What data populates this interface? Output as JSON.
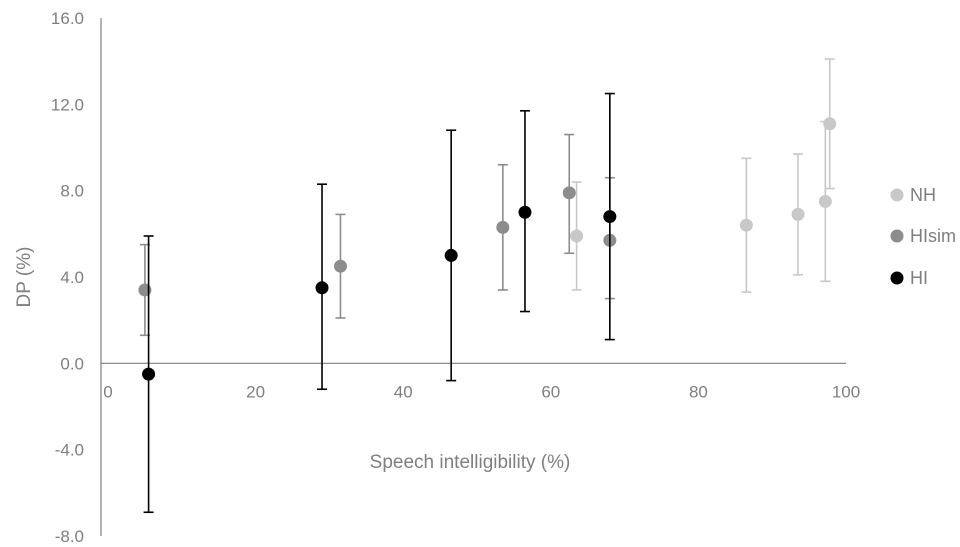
{
  "chart_data": {
    "type": "scatter",
    "title": "",
    "xlabel": "Speech intelligibility (%)",
    "ylabel": "DP (%)",
    "xlim": [
      0,
      100
    ],
    "ylim": [
      -8.0,
      16.0
    ],
    "x_ticks": [
      0,
      20,
      40,
      60,
      80,
      100
    ],
    "y_ticks": [
      -8.0,
      -4.0,
      0.0,
      4.0,
      8.0,
      12.0,
      16.0
    ],
    "x_tick_labels": [
      "0",
      "20",
      "40",
      "60",
      "80",
      "100"
    ],
    "y_tick_labels": [
      "-8.0",
      "-4.0",
      "0.0",
      "4.0",
      "8.0",
      "12.0",
      "16.0"
    ],
    "grid": false,
    "legend_position": "right",
    "error_bars": true,
    "series": [
      {
        "name": "NH",
        "color": "#c8c8c8",
        "points": [
          {
            "x": 63.5,
            "y": 5.9,
            "low": 3.4,
            "high": 8.4
          },
          {
            "x": 86.5,
            "y": 6.4,
            "low": 3.3,
            "high": 9.5
          },
          {
            "x": 93.5,
            "y": 6.9,
            "low": 4.1,
            "high": 9.7
          },
          {
            "x": 97.2,
            "y": 7.5,
            "low": 3.8,
            "high": 11.2
          },
          {
            "x": 97.8,
            "y": 11.1,
            "low": 8.1,
            "high": 14.1
          }
        ]
      },
      {
        "name": "HIsim",
        "color": "#8c8c8c",
        "points": [
          {
            "x": 5.0,
            "y": 3.4,
            "low": 1.3,
            "high": 5.5
          },
          {
            "x": 31.5,
            "y": 4.5,
            "low": 2.1,
            "high": 6.9
          },
          {
            "x": 53.5,
            "y": 6.3,
            "low": 3.4,
            "high": 9.2
          },
          {
            "x": 62.5,
            "y": 7.9,
            "low": 5.1,
            "high": 10.6
          },
          {
            "x": 68.0,
            "y": 5.7,
            "low": 3.0,
            "high": 8.6
          }
        ]
      },
      {
        "name": "HI",
        "color": "#000000",
        "points": [
          {
            "x": 5.5,
            "y": -0.5,
            "low": -6.9,
            "high": 5.9
          },
          {
            "x": 29.0,
            "y": 3.5,
            "low": -1.2,
            "high": 8.3
          },
          {
            "x": 46.5,
            "y": 5.0,
            "low": -0.8,
            "high": 10.8
          },
          {
            "x": 56.5,
            "y": 7.0,
            "low": 2.4,
            "high": 11.7
          },
          {
            "x": 68.0,
            "y": 6.8,
            "low": 1.1,
            "high": 12.5
          }
        ]
      }
    ]
  }
}
